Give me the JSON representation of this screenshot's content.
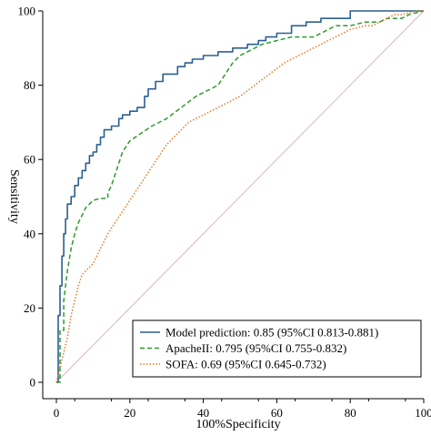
{
  "chart_data": {
    "type": "line",
    "xlabel": "100%Specificity",
    "ylabel": "Sensitivity",
    "xlim": [
      0,
      100
    ],
    "ylim": [
      0,
      100
    ],
    "xticks": [
      0,
      20,
      40,
      60,
      80,
      100
    ],
    "yticks": [
      0,
      20,
      40,
      60,
      80,
      100
    ],
    "grid": false,
    "legend_position": "bottom-right",
    "reference_line": {
      "from": [
        0,
        0
      ],
      "to": [
        100,
        100
      ],
      "color": "#d9b8b8"
    },
    "series": [
      {
        "name": "Model prediction: 0.85  (95%CI 0.813-0.881)",
        "color": "#2b5f91",
        "style": "solid",
        "x": [
          0,
          0.5,
          0.5,
          1,
          1,
          1.5,
          1.5,
          2,
          2,
          2.5,
          2.5,
          3,
          3,
          4,
          4,
          5,
          5,
          6,
          6,
          7,
          7,
          8,
          8,
          9,
          9,
          10,
          10,
          11,
          11,
          12,
          12,
          13,
          13,
          15,
          15,
          17,
          17,
          18,
          18,
          20,
          20,
          22,
          22,
          24,
          24,
          25,
          25,
          27,
          27,
          29,
          29,
          33,
          33,
          35,
          35,
          37,
          37,
          40,
          40,
          44,
          44,
          48,
          48,
          52,
          52,
          55,
          55,
          57,
          57,
          60,
          60,
          64,
          64,
          68,
          68,
          72,
          72,
          80,
          80,
          100
        ],
        "y": [
          0,
          0,
          18,
          18,
          26,
          26,
          34,
          34,
          40,
          40,
          44,
          44,
          48,
          48,
          50,
          50,
          53,
          53,
          55,
          55,
          57,
          57,
          59,
          59,
          61,
          61,
          62,
          62,
          64,
          64,
          66,
          66,
          68,
          68,
          69,
          69,
          71,
          71,
          72,
          72,
          73,
          73,
          74,
          74,
          77,
          77,
          79,
          79,
          81,
          81,
          83,
          83,
          85,
          85,
          86,
          86,
          87,
          87,
          88,
          88,
          89,
          89,
          90,
          90,
          91,
          91,
          92,
          92,
          93,
          93,
          94,
          94,
          96,
          96,
          97,
          97,
          98,
          98,
          100,
          100
        ]
      },
      {
        "name": "ApacheII: 0.795  (95%CI 0.755-0.832)",
        "color": "#2e9a2e",
        "style": "dashed",
        "x": [
          0,
          1,
          1,
          2,
          2,
          3,
          4,
          5,
          6,
          7,
          8,
          9,
          10,
          12,
          14,
          14,
          15,
          16,
          17,
          18,
          20,
          23,
          26,
          30,
          34,
          38,
          42,
          44,
          46,
          48,
          50,
          52,
          54,
          56,
          58,
          60,
          62,
          64,
          66,
          70,
          72,
          74,
          76,
          80,
          84,
          88,
          90,
          94,
          96,
          98,
          100
        ],
        "y": [
          0,
          0,
          14,
          14,
          22,
          30,
          36,
          40,
          43,
          45,
          47,
          48,
          49,
          49.5,
          49.5,
          51,
          53,
          56,
          59,
          62,
          65,
          67,
          69,
          71,
          74,
          77,
          79,
          80,
          83,
          86,
          88,
          89,
          90,
          91,
          91.5,
          92,
          92.5,
          93,
          93,
          93,
          94,
          95,
          96,
          96,
          97,
          97,
          98,
          98,
          99,
          99.5,
          100
        ]
      },
      {
        "name": "SOFA: 0.69  (95%CI 0.645-0.732)",
        "color": "#e07b2a",
        "style": "dotted",
        "x": [
          0,
          1,
          2,
          3,
          4,
          5,
          6,
          7,
          8,
          9,
          10,
          12,
          14,
          16,
          18,
          20,
          22,
          24,
          26,
          28,
          30,
          32,
          34,
          36,
          38,
          40,
          42,
          44,
          46,
          48,
          50,
          54,
          58,
          62,
          66,
          70,
          74,
          76,
          78,
          80,
          82,
          84,
          86,
          88,
          90,
          92,
          94,
          96,
          98,
          100
        ],
        "y": [
          0,
          4,
          8,
          12,
          18,
          22,
          26,
          29,
          30,
          31,
          32,
          36,
          40,
          43,
          46,
          49,
          52,
          55,
          58,
          61,
          64,
          66,
          68,
          70,
          71,
          72,
          73,
          74,
          75,
          76,
          77,
          80,
          83,
          86,
          88,
          90,
          92,
          93,
          94,
          95,
          95.5,
          96,
          96,
          97,
          98,
          99,
          99,
          99.5,
          100,
          100
        ]
      }
    ]
  }
}
